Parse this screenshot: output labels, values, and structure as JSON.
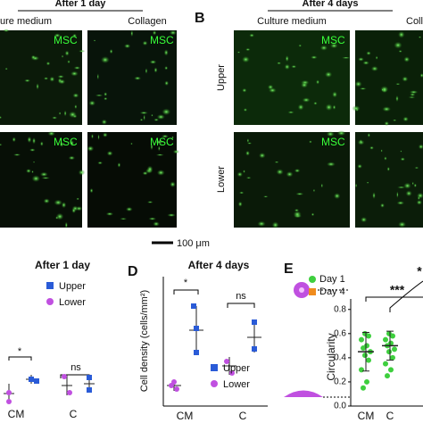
{
  "top_left": {
    "title": "After 1 day",
    "columns": [
      "ure medium",
      "Collagen"
    ],
    "image_labels": [
      "MSC",
      "MSC",
      "MSC",
      "MSC"
    ]
  },
  "top_right": {
    "panel": "B",
    "title": "After 4 days",
    "columns": [
      "Culture medium",
      "Collagen"
    ],
    "rows": [
      "Upper",
      "Lower"
    ],
    "image_labels": [
      "MSC",
      "MSC"
    ]
  },
  "scale_bar": "100 μm",
  "plot_c": {
    "title": "After 1 day",
    "legend": [
      "Upper",
      "Lower"
    ],
    "significance": [
      "*",
      "ns"
    ],
    "categories": [
      "CM",
      "C"
    ]
  },
  "plot_d": {
    "panel": "D",
    "title": "After 4 days",
    "ylabel": "Cell density (cells/mm²)",
    "legend": [
      "Upper",
      "Lower"
    ],
    "significance": [
      "*",
      "ns"
    ],
    "categories": [
      "CM",
      "C"
    ]
  },
  "chart_data": {
    "type": "scatter",
    "panel": "E",
    "ylabel": "Circularity",
    "categories": [
      "CM",
      "C"
    ],
    "ylim": [
      0,
      0.85
    ],
    "yticks": [
      {
        "value": 0,
        "label": "0.0"
      },
      0.2,
      0.4,
      0.6,
      0.8
    ],
    "legend": [
      "Day 1",
      "Day 4"
    ],
    "colors": [
      "#3ecf3e",
      "#f08c1e"
    ],
    "significance": [
      "***",
      "*"
    ],
    "series": [
      {
        "name": "Day 1",
        "color": "#3ecf3e",
        "points": [
          [
            0.6,
            0.58,
            0.55,
            0.5,
            0.48,
            0.45,
            0.42,
            0.38,
            0.3,
            0.2,
            0.15
          ],
          [
            0.6,
            0.58,
            0.55,
            0.52,
            0.5,
            0.47,
            0.45,
            0.4,
            0.35,
            0.3,
            0.25
          ]
        ],
        "means": [
          0.45,
          0.5
        ],
        "sd": [
          0.16,
          0.12
        ]
      }
    ]
  }
}
